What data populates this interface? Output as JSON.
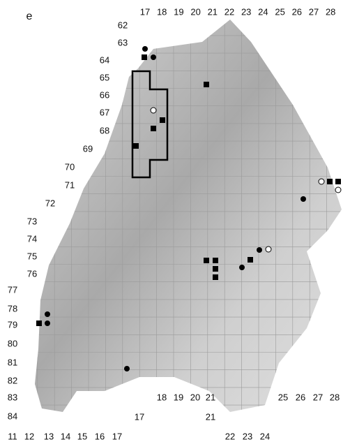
{
  "panel_label": "e",
  "top_labels": [
    "17",
    "18",
    "19",
    "20",
    "21",
    "22",
    "23",
    "24",
    "25",
    "26",
    "27",
    "28"
  ],
  "left_labels": [
    "62",
    "63",
    "64",
    "65",
    "66",
    "67",
    "68",
    "69",
    "70",
    "71",
    "72",
    "73",
    "74",
    "75",
    "76",
    "77",
    "78",
    "79",
    "80",
    "81",
    "82",
    "83",
    "84"
  ],
  "inner_labels": [
    "18",
    "19",
    "20",
    "21",
    "25",
    "26",
    "27",
    "28",
    "17",
    "21"
  ],
  "bottom_labels": [
    "11",
    "12",
    "13",
    "14",
    "15",
    "16",
    "17",
    "22",
    "23",
    "24"
  ]
}
